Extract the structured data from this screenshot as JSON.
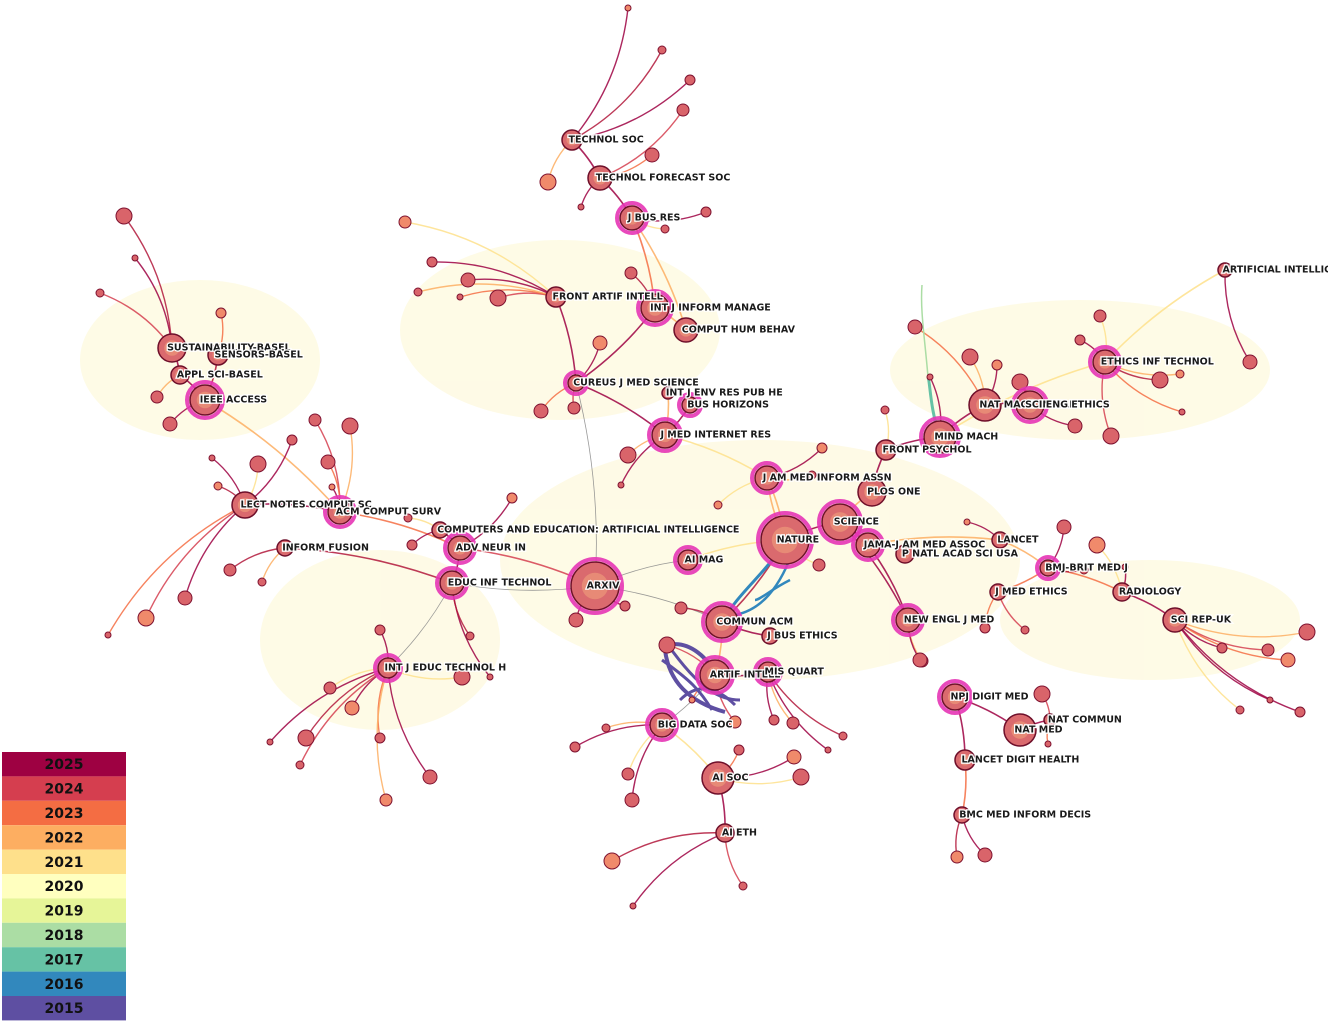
{
  "nodes": [
    {
      "label": "TECHNOL SOC"
    },
    {
      "label": "TECHNOL FORECAST SOC"
    },
    {
      "label": "J BUS RES"
    },
    {
      "label": "FRONT ARTIF INTELL"
    },
    {
      "label": "INT J INFORM MANAGE"
    },
    {
      "label": "COMPUT HUM BEHAV"
    },
    {
      "label": "CUREUS J MED SCIENCE"
    },
    {
      "label": "INT J ENV RES PUB HE"
    },
    {
      "label": "BUS HORIZONS"
    },
    {
      "label": "J MED INTERNET RES"
    },
    {
      "label": "SUSTAINABILITY-BASEL"
    },
    {
      "label": "SENSORS-BASEL"
    },
    {
      "label": "APPL SCI-BASEL"
    },
    {
      "label": "IEEE ACCESS"
    },
    {
      "label": "LECT NOTES COMPUT SC"
    },
    {
      "label": "ACM COMPUT SURV"
    },
    {
      "label": "COMPUTERS AND EDUCATION: ARTIFICIAL INTELLIGENCE"
    },
    {
      "label": "ADV NEUR IN"
    },
    {
      "label": "INFORM FUSION"
    },
    {
      "label": "EDUC INF TECHNOL"
    },
    {
      "label": "ARXIV"
    },
    {
      "label": "AI MAG"
    },
    {
      "label": "NATURE"
    },
    {
      "label": "SCIENCE"
    },
    {
      "label": "JAMA-J AM MED ASSOC"
    },
    {
      "label": "P NATL ACAD SCI USA"
    },
    {
      "label": "BMJ-BRIT MED J"
    },
    {
      "label": "LANCET"
    },
    {
      "label": "J AM MED INFORM ASSN"
    },
    {
      "label": "PLOS ONE"
    },
    {
      "label": "FRONT PSYCHOL"
    },
    {
      "label": "MIND MACH"
    },
    {
      "label": "NAT MACH INTELL"
    },
    {
      "label": "SCI ENG ETHICS"
    },
    {
      "label": "ETHICS INF TECHNOL"
    },
    {
      "label": "ARTIFICIAL INTELLIGE"
    },
    {
      "label": "COMMUN ACM"
    },
    {
      "label": "J BUS ETHICS"
    },
    {
      "label": "NEW ENGL J MED"
    },
    {
      "label": "J MED ETHICS"
    },
    {
      "label": "RADIOLOGY"
    },
    {
      "label": "SCI REP-UK"
    },
    {
      "label": "ARTIF INTELL"
    },
    {
      "label": "MIS QUART"
    },
    {
      "label": "INT J EDUC TECHNOL H"
    },
    {
      "label": "BIG DATA SOC"
    },
    {
      "label": "NPJ DIGIT MED"
    },
    {
      "label": "NAT MED"
    },
    {
      "label": "NAT COMMUN"
    },
    {
      "label": "LANCET DIGIT HEALTH"
    },
    {
      "label": "AI SOC"
    },
    {
      "label": "AI ETH"
    },
    {
      "label": "BMC MED INFORM DECIS"
    }
  ],
  "legend": [
    {
      "label": "2025",
      "color": "#9e0142"
    },
    {
      "label": "2024",
      "color": "#d53e4f"
    },
    {
      "label": "2023",
      "color": "#f46d43"
    },
    {
      "label": "2022",
      "color": "#fdae61"
    },
    {
      "label": "2021",
      "color": "#fee08b"
    },
    {
      "label": "2020",
      "color": "#ffffbf"
    },
    {
      "label": "2019",
      "color": "#e6f598"
    },
    {
      "label": "2018",
      "color": "#abdda4"
    },
    {
      "label": "2017",
      "color": "#66c2a5"
    },
    {
      "label": "2016",
      "color": "#3288bd"
    },
    {
      "label": "2015",
      "color": "#5e4fa2"
    }
  ]
}
